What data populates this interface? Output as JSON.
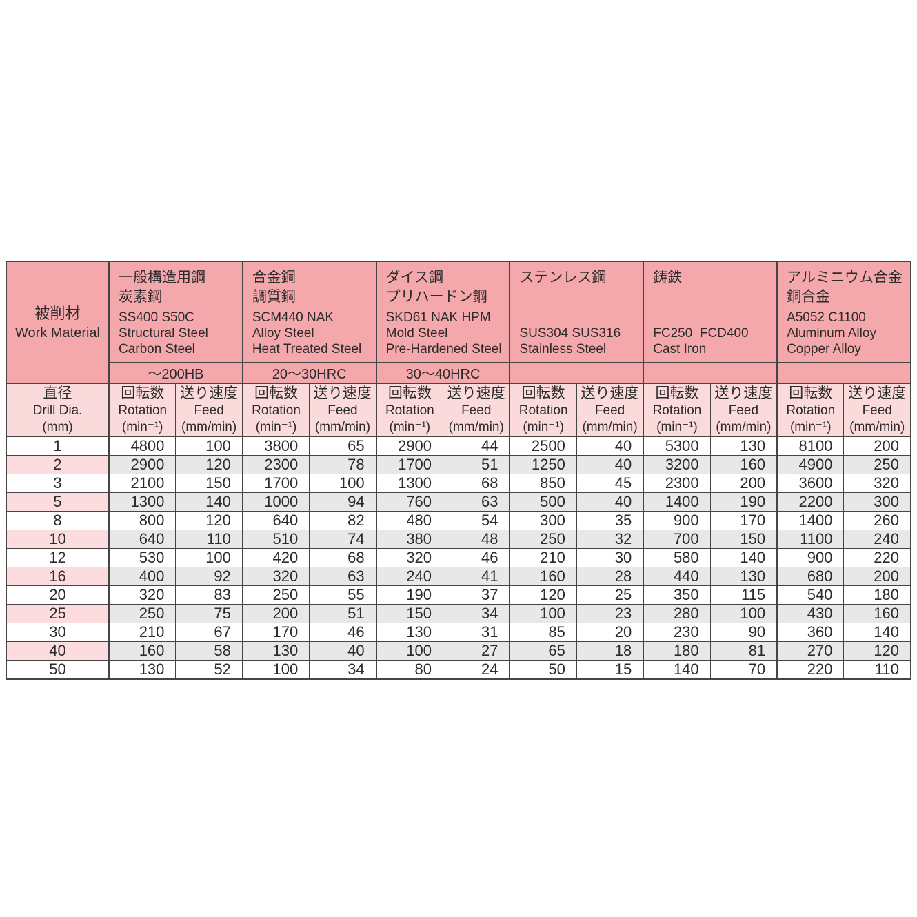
{
  "table": {
    "corner": {
      "jp": "被削材",
      "en": "Work Material"
    },
    "dia_header": {
      "jp": "直径",
      "en": "Drill Dia.",
      "unit": "(mm)"
    },
    "sub_headers": {
      "rotation": {
        "jp": "回転数",
        "en": "Rotation",
        "unit": "(min⁻¹)"
      },
      "feed": {
        "jp": "送り速度",
        "en": "Feed",
        "unit": "(mm/min)"
      }
    },
    "groups": [
      {
        "names": [
          "一般構造用鋼",
          "炭素鋼"
        ],
        "grades": [
          "SS400 S50C",
          "Structural Steel",
          "Carbon Steel"
        ],
        "hardness": "～200HB"
      },
      {
        "names": [
          "合金鋼",
          "調質鋼"
        ],
        "grades": [
          "SCM440 NAK",
          "Alloy Steel",
          "Heat Treated Steel"
        ],
        "hardness": "20～30HRC"
      },
      {
        "names": [
          "ダイス鋼",
          "プリハードン鋼"
        ],
        "grades": [
          "SKD61 NAK HPM",
          "Mold Steel",
          "Pre-Hardened Steel"
        ],
        "hardness": "30～40HRC"
      },
      {
        "names": [
          "ステンレス鋼"
        ],
        "grades": [
          "SUS304 SUS316",
          "Stainless Steel"
        ],
        "hardness": ""
      },
      {
        "names": [
          "鋳鉄"
        ],
        "grades": [
          "FC250  FCD400",
          "Cast Iron"
        ],
        "hardness": ""
      },
      {
        "names": [
          "アルミニウム合金",
          "銅合金"
        ],
        "grades": [
          "A5052 C1100",
          "Aluminum Alloy",
          "Copper Alloy"
        ],
        "hardness": ""
      }
    ],
    "rows": [
      {
        "dia": "1",
        "values": [
          "4800",
          "100",
          "3800",
          "65",
          "2900",
          "44",
          "2500",
          "40",
          "5300",
          "130",
          "8100",
          "200"
        ]
      },
      {
        "dia": "2",
        "values": [
          "2900",
          "120",
          "2300",
          "78",
          "1700",
          "51",
          "1250",
          "40",
          "3200",
          "160",
          "4900",
          "250"
        ]
      },
      {
        "dia": "3",
        "values": [
          "2100",
          "150",
          "1700",
          "100",
          "1300",
          "68",
          "850",
          "45",
          "2300",
          "200",
          "3600",
          "320"
        ]
      },
      {
        "dia": "5",
        "values": [
          "1300",
          "140",
          "1000",
          "94",
          "760",
          "63",
          "500",
          "40",
          "1400",
          "190",
          "2200",
          "300"
        ]
      },
      {
        "dia": "8",
        "values": [
          "800",
          "120",
          "640",
          "82",
          "480",
          "54",
          "300",
          "35",
          "900",
          "170",
          "1400",
          "260"
        ]
      },
      {
        "dia": "10",
        "values": [
          "640",
          "110",
          "510",
          "74",
          "380",
          "48",
          "250",
          "32",
          "700",
          "150",
          "1100",
          "240"
        ]
      },
      {
        "dia": "12",
        "values": [
          "530",
          "100",
          "420",
          "68",
          "320",
          "46",
          "210",
          "30",
          "580",
          "140",
          "900",
          "220"
        ]
      },
      {
        "dia": "16",
        "values": [
          "400",
          "92",
          "320",
          "63",
          "240",
          "41",
          "160",
          "28",
          "440",
          "130",
          "680",
          "200"
        ]
      },
      {
        "dia": "20",
        "values": [
          "320",
          "83",
          "250",
          "55",
          "190",
          "37",
          "120",
          "25",
          "350",
          "115",
          "540",
          "180"
        ]
      },
      {
        "dia": "25",
        "values": [
          "250",
          "75",
          "200",
          "51",
          "150",
          "34",
          "100",
          "23",
          "280",
          "100",
          "430",
          "160"
        ]
      },
      {
        "dia": "30",
        "values": [
          "210",
          "67",
          "170",
          "46",
          "130",
          "31",
          "85",
          "20",
          "230",
          "90",
          "360",
          "140"
        ]
      },
      {
        "dia": "40",
        "values": [
          "160",
          "58",
          "130",
          "40",
          "100",
          "27",
          "65",
          "18",
          "180",
          "81",
          "270",
          "120"
        ]
      },
      {
        "dia": "50",
        "values": [
          "130",
          "52",
          "100",
          "34",
          "80",
          "24",
          "50",
          "15",
          "140",
          "70",
          "220",
          "110"
        ]
      }
    ],
    "colors": {
      "header_pink": "#F4A8AC",
      "subheader_pink": "#FBDADC",
      "row_pink": "#FCDCDF",
      "row_gray": "#E8E8E8",
      "border": "#454545",
      "text": "#2B2B2B"
    }
  }
}
